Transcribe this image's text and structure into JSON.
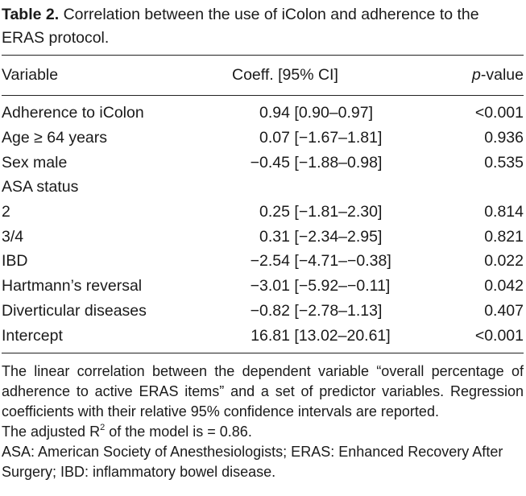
{
  "caption": {
    "label": "Table 2.",
    "text": "Correlation between the use of iColon and adherence to the ERAS protocol."
  },
  "table": {
    "headers": {
      "variable": "Variable",
      "coef": "Coeff. [95% CI]",
      "p_prefix": "p",
      "p_suffix": "-value"
    },
    "rows": [
      {
        "variable": "Adherence to iColon",
        "coef": "0.94",
        "ci": "[0.90–0.97]",
        "p": "<0.001"
      },
      {
        "variable": "Age ≥ 64 years",
        "coef": "0.07",
        "ci": "[−1.67–1.81]",
        "p": "0.936"
      },
      {
        "variable": "Sex male",
        "coef": "−0.45",
        "ci": "[−1.88–0.98]",
        "p": "0.535"
      },
      {
        "variable": "ASA status",
        "coef": "",
        "ci": "",
        "p": ""
      },
      {
        "variable": "2",
        "coef": "0.25",
        "ci": "[−1.81–2.30]",
        "p": "0.814"
      },
      {
        "variable": "3/4",
        "coef": "0.31",
        "ci": "[−2.34–2.95]",
        "p": "0.821"
      },
      {
        "variable": "IBD",
        "coef": "−2.54",
        "ci": "[−4.71–−0.38]",
        "p": "0.022"
      },
      {
        "variable": "Hartmann’s reversal",
        "coef": "−3.01",
        "ci": "[−5.92–−0.11]",
        "p": "0.042"
      },
      {
        "variable": "Diverticular diseases",
        "coef": "−0.82",
        "ci": "[−2.78–1.13]",
        "p": "0.407"
      },
      {
        "variable": "Intercept",
        "coef": "16.81",
        "ci": "[13.02–20.61]",
        "p": "<0.001"
      }
    ]
  },
  "notes": {
    "note1": "The linear correlation between the dependent variable “overall percentage of adherence to active ERAS items” and a set of predictor variables. Regression coefficients with their relative 95% confidence intervals are reported.",
    "note2_prefix": "The adjusted R",
    "note2_sup": "2",
    "note2_suffix": " of the model is = 0.86.",
    "note3": "ASA: American Society of Anesthesiologists; ERAS: Enhanced Recovery After Surgery; IBD: inflammatory bowel disease."
  }
}
